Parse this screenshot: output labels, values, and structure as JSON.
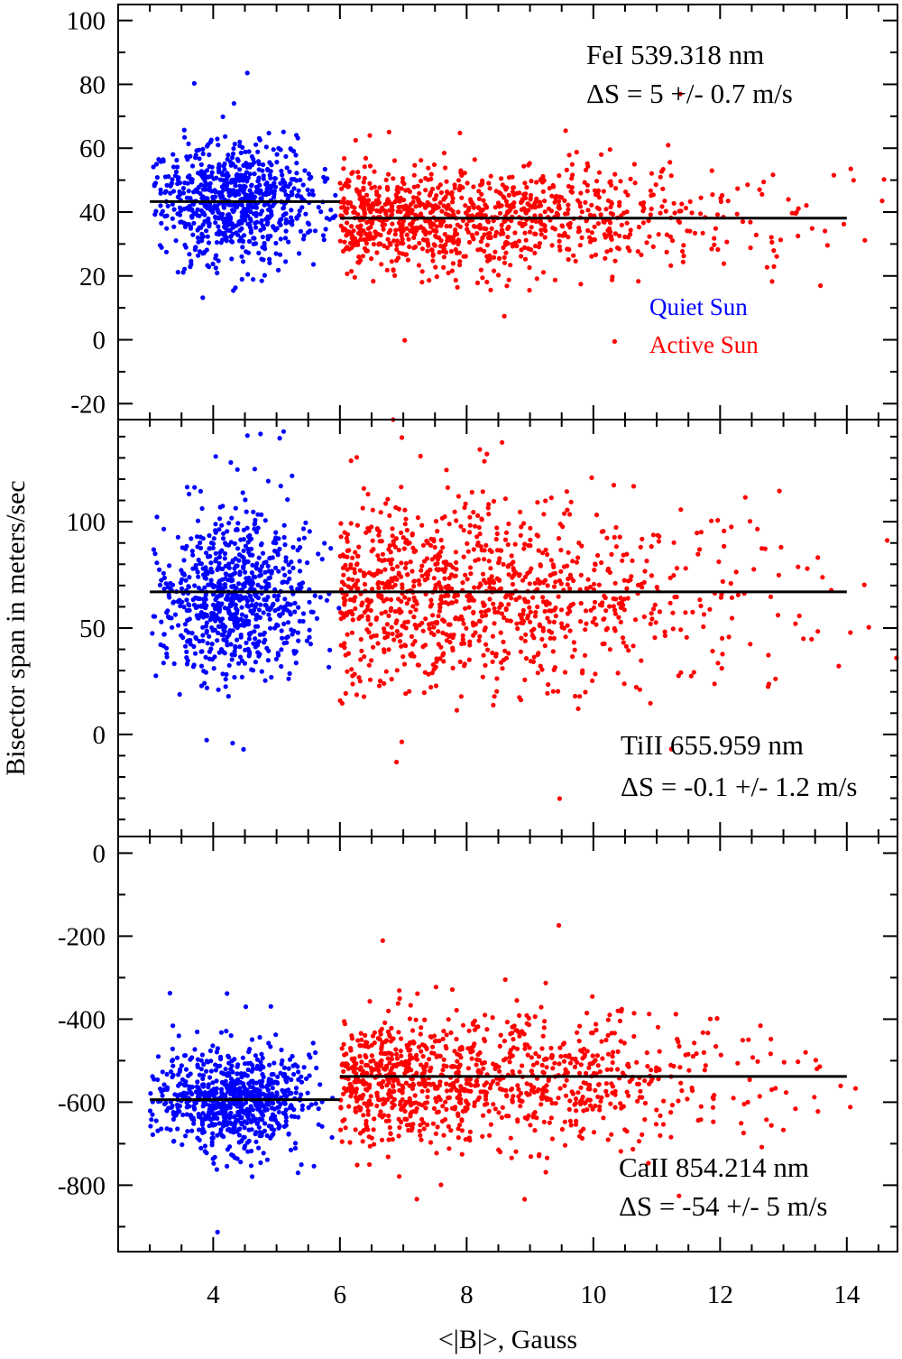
{
  "chart_data": [
    {
      "type": "scatter",
      "panel": "top",
      "line_label": "FeI 539.318 nm",
      "delta_label": "ΔS = 5 +/- 0.7 m/s",
      "legend": [
        "Quiet Sun",
        "Active Sun"
      ],
      "ylim": [
        -25,
        105
      ],
      "yticks": [
        -20,
        0,
        20,
        40,
        60,
        80,
        100
      ],
      "ytick_labels": [
        "-20",
        "0",
        "20",
        "40",
        "60",
        "80",
        "100"
      ],
      "ytick_minor_step": 10,
      "series": [
        {
          "name": "Quiet Sun",
          "color": "#0000ff",
          "x_range": [
            3.0,
            6.0
          ],
          "center": 43,
          "spread": 9,
          "count": 750,
          "seed": 11,
          "fit": {
            "x": [
              3.0,
              6.0
            ],
            "y": [
              43.3,
              43.3
            ]
          }
        },
        {
          "name": "Active Sun",
          "color": "#ff0000",
          "x_range": [
            6.0,
            14.8
          ],
          "center": 38,
          "spread": 8,
          "count": 1050,
          "seed": 12,
          "fit": {
            "x": [
              6.0,
              14.0
            ],
            "y": [
              38.1,
              38.1
            ]
          }
        }
      ]
    },
    {
      "type": "scatter",
      "panel": "middle",
      "line_label": "TiII 655.959 nm",
      "delta_label": "ΔS = -0.1 +/- 1.2 m/s",
      "ylim": [
        -48,
        148
      ],
      "yticks": [
        0,
        50,
        100
      ],
      "ytick_labels": [
        "0",
        "50",
        "100"
      ],
      "ytick_minor_step": 10,
      "series": [
        {
          "name": "Quiet Sun",
          "color": "#0000ff",
          "x_range": [
            3.0,
            6.0
          ],
          "center": 66,
          "spread": 19,
          "count": 750,
          "seed": 21,
          "fit": {
            "x": [
              3.0,
              6.0
            ],
            "y": [
              67,
              67
            ]
          }
        },
        {
          "name": "Active Sun",
          "color": "#ff0000",
          "x_range": [
            6.0,
            14.8
          ],
          "center": 66,
          "spread": 21,
          "count": 1050,
          "seed": 22,
          "fit": {
            "x": [
              6.0,
              14.0
            ],
            "y": [
              67,
              67
            ]
          }
        }
      ]
    },
    {
      "type": "scatter",
      "panel": "bottom",
      "line_label": "CaII 854.214 nm",
      "delta_label": "ΔS = -54 +/- 5 m/s",
      "xlabel": "<|B|>, Gauss",
      "xlim": [
        2.5,
        14.8
      ],
      "xticks": [
        4,
        6,
        8,
        10,
        12,
        14
      ],
      "xtick_labels": [
        "4",
        "6",
        "8",
        "10",
        "12",
        "14"
      ],
      "xtick_minor_step": 0.5,
      "ylim": [
        -960,
        40
      ],
      "yticks": [
        -800,
        -600,
        -400,
        -200,
        0
      ],
      "ytick_labels": [
        "-800",
        "-600",
        "-400",
        "-200",
        "0"
      ],
      "ytick_minor_step": 100,
      "series": [
        {
          "name": "Quiet Sun",
          "color": "#0000ff",
          "x_range": [
            3.0,
            6.0
          ],
          "center": -595,
          "spread": 58,
          "count": 750,
          "seed": 31,
          "fit": {
            "x": [
              3.0,
              6.0
            ],
            "y": [
              -594,
              -594
            ]
          }
        },
        {
          "name": "Active Sun",
          "color": "#ff0000",
          "x_range": [
            6.0,
            14.8
          ],
          "center": -545,
          "spread": 78,
          "count": 1050,
          "seed": 32,
          "fit": {
            "x": [
              6.0,
              14.0
            ],
            "y": [
              -538,
              -538
            ]
          }
        }
      ]
    }
  ],
  "ylabel": "Bisector span in meters/sec"
}
